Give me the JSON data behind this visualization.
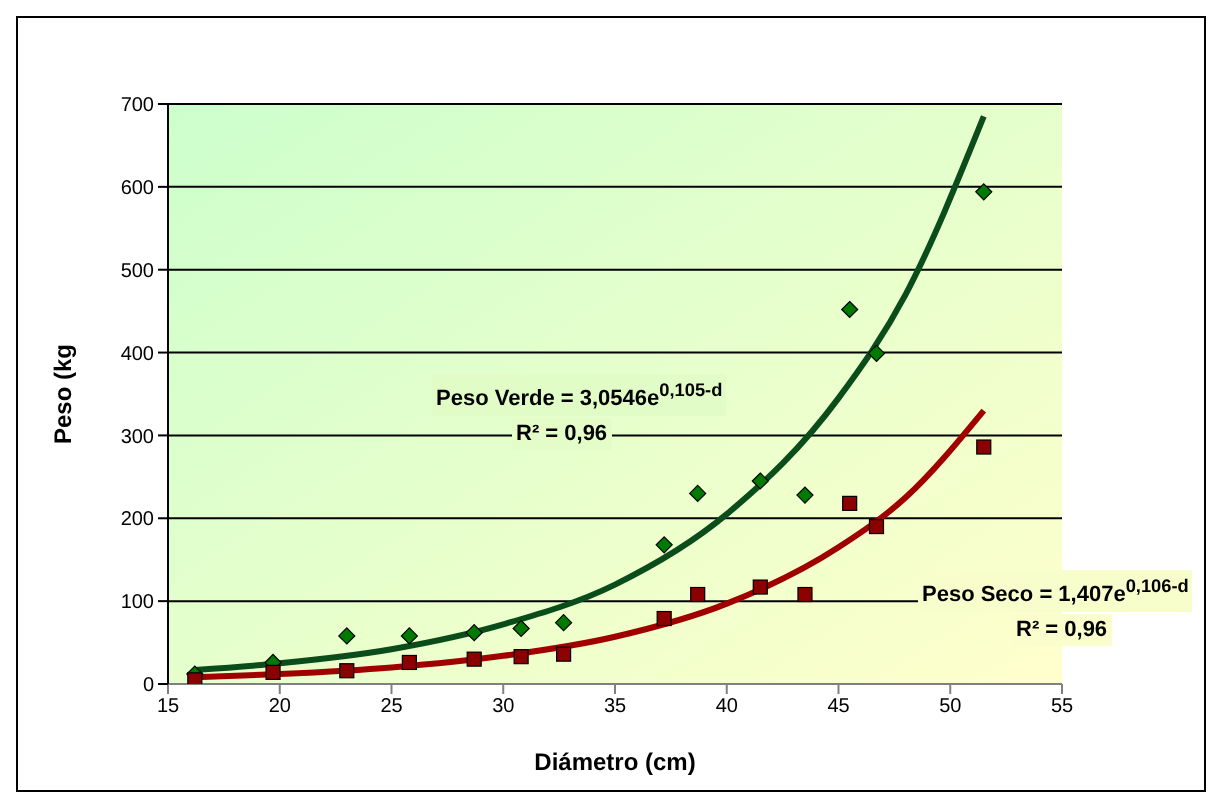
{
  "chart_data": {
    "type": "scatter",
    "xlabel": "Diámetro (cm)",
    "ylabel": "Peso (kg",
    "xlim": [
      15,
      55
    ],
    "xticks": [
      15,
      20,
      25,
      30,
      35,
      40,
      45,
      50,
      55
    ],
    "ylim": [
      0,
      700
    ],
    "yticks": [
      0,
      100,
      200,
      300,
      400,
      500,
      600,
      700
    ],
    "grid": "y",
    "legend": false,
    "series": [
      {
        "marker": "diamond",
        "color": "#007a00",
        "x": [
          16.2,
          19.7,
          23.0,
          25.8,
          28.7,
          30.8,
          32.7,
          37.2,
          38.7,
          41.5,
          43.5,
          45.5,
          46.7,
          51.5
        ],
        "values": [
          12,
          26,
          58,
          58,
          62,
          67,
          74,
          168,
          230,
          245,
          228,
          452,
          399,
          594
        ]
      },
      {
        "marker": "square",
        "color": "#8b0000",
        "x": [
          16.2,
          19.7,
          23.0,
          25.8,
          28.7,
          30.8,
          32.7,
          37.2,
          38.7,
          41.5,
          43.5,
          45.5,
          46.7,
          51.5
        ],
        "values": [
          5,
          14,
          16,
          26,
          30,
          33,
          36,
          79,
          108,
          117,
          108,
          218,
          190,
          286
        ]
      },
      {
        "type": "line",
        "marker": "none",
        "color": "#0b4d1a",
        "x": [
          16.2,
          20,
          25,
          30,
          35,
          40,
          45,
          48,
          51.5
        ],
        "values": [
          17,
          25,
          42,
          72,
          120,
          205,
          345,
          470,
          685
        ]
      },
      {
        "type": "line",
        "marker": "none",
        "color": "#a00000",
        "x": [
          16.2,
          20,
          25,
          30,
          35,
          40,
          45,
          48,
          51.5
        ],
        "values": [
          8,
          12,
          20,
          34,
          57,
          97,
          165,
          225,
          330
        ]
      }
    ],
    "annotations": [
      "Peso Verde = 3,0546e$^{0,105-d}$",
      "R² = 0,96",
      "Peso Seco = 1,407e$^{0,106-d}$",
      "R² = 0,96"
    ]
  }
}
